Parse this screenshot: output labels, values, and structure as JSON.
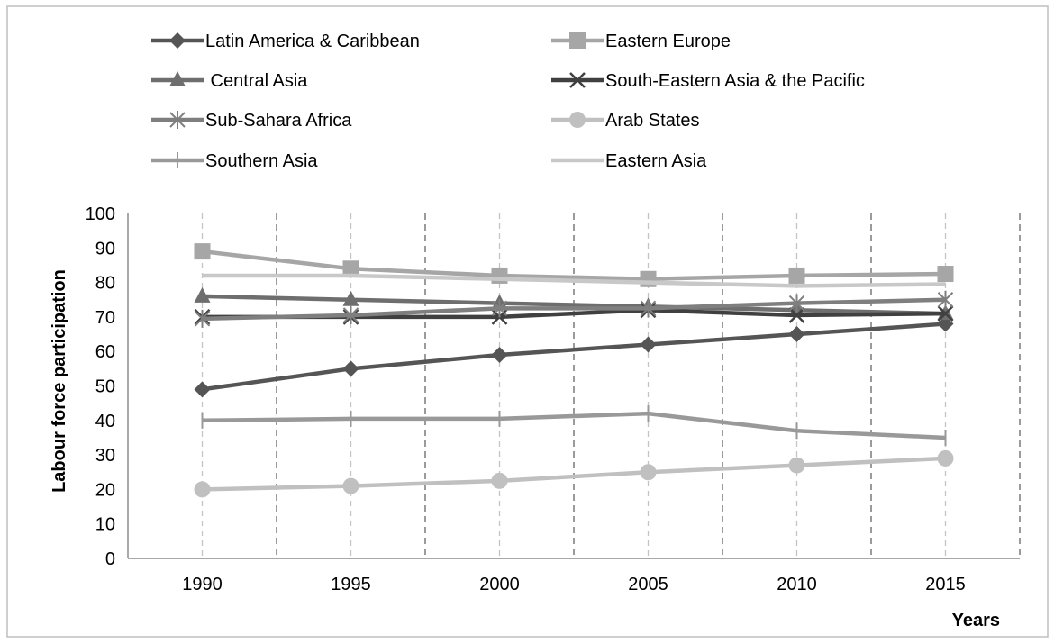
{
  "chart_data": {
    "type": "line",
    "title": "",
    "xlabel": "Years",
    "ylabel": "Labour force participation",
    "x": [
      "1990",
      "1995",
      "2000",
      "2005",
      "2010",
      "2015"
    ],
    "ylim": [
      0,
      100
    ],
    "yticks": [
      0,
      10,
      20,
      30,
      40,
      50,
      60,
      70,
      80,
      90,
      100
    ],
    "grid": "vertical dashed",
    "legend": "top",
    "series": [
      {
        "name": "Latin America & Caribbean",
        "marker": "diamond",
        "color": "#555555",
        "values": [
          49,
          55,
          59,
          62,
          65,
          68
        ]
      },
      {
        "name": "Eastern Europe",
        "marker": "square",
        "color": "#a6a6a6",
        "values": [
          89,
          84,
          82,
          81,
          82,
          82.5
        ]
      },
      {
        "name": " Central Asia",
        "marker": "triangle",
        "color": "#6e6e6e",
        "values": [
          76,
          75,
          74,
          73,
          72,
          71
        ]
      },
      {
        "name": "South-Eastern Asia & the Pacific",
        "marker": "x",
        "color": "#404040",
        "values": [
          70,
          70,
          70,
          72,
          70.5,
          71
        ]
      },
      {
        "name": "Sub-Sahara Africa",
        "marker": "asterisk",
        "color": "#7f7f7f",
        "values": [
          69.5,
          70.5,
          72.5,
          72.5,
          74,
          75
        ]
      },
      {
        "name": "Arab States",
        "marker": "circle",
        "color": "#c0c0c0",
        "values": [
          20,
          21,
          22.5,
          25,
          27,
          29
        ]
      },
      {
        "name": "Southern Asia",
        "marker": "plus",
        "color": "#999999",
        "values": [
          40,
          40.5,
          40.5,
          42,
          37,
          35
        ]
      },
      {
        "name": "Eastern Asia",
        "marker": "none",
        "color": "#c8c8c8",
        "values": [
          82,
          82,
          81,
          80,
          79,
          79.5
        ]
      }
    ]
  }
}
